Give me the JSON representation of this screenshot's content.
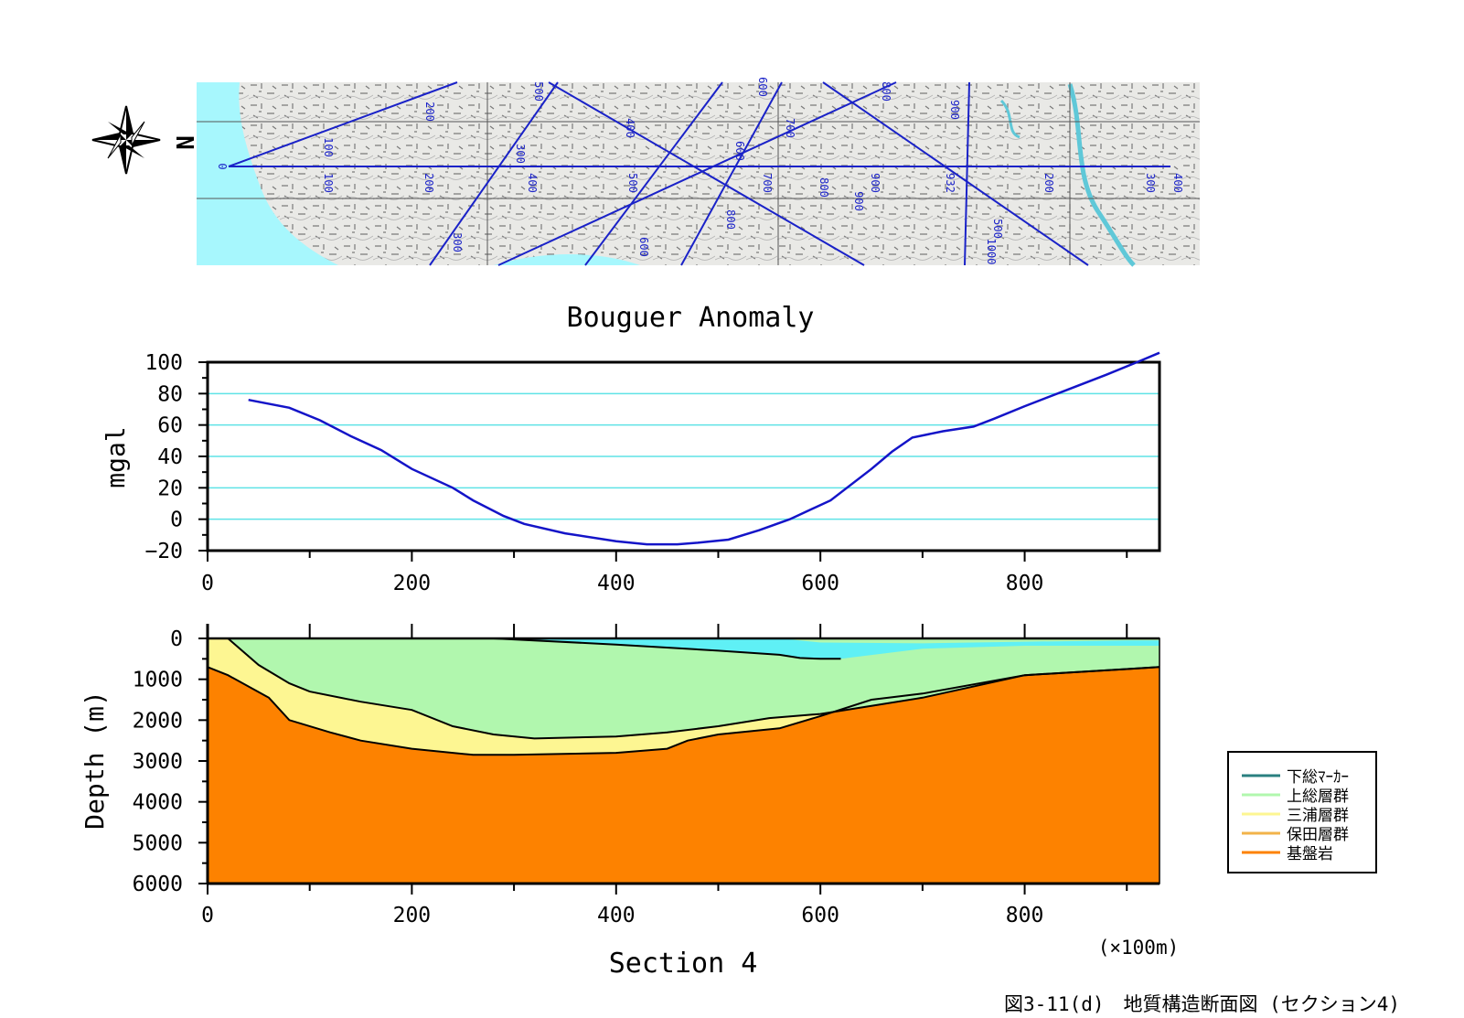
{
  "colors": {
    "route_line": "#1a22c8",
    "gravity_line": "#1414c8",
    "grid_line": "#5fe3e6",
    "axis": "#000000",
    "hodogaya": "#f2b34a",
    "miura": "#fdf692",
    "kazusa": "#b1f7ae",
    "shimosa": "#2a8080",
    "shimosa_fill": "#5ff0f5",
    "basement": "#fd8200",
    "sea": "#a7f7fd",
    "map_land": "#e9e9e6"
  },
  "map": {
    "compass_label": "N",
    "distance_labels": [
      "0",
      "100",
      "100",
      "200",
      "200",
      "300",
      "300",
      "400",
      "400",
      "500",
      "500",
      "600",
      "600",
      "700",
      "700",
      "800",
      "800",
      "900",
      "900",
      "932",
      "1000",
      "200",
      "300",
      "400",
      "500",
      "600",
      "800",
      "900"
    ]
  },
  "chart_data": [
    {
      "type": "line",
      "title": "Bouguer Anomaly",
      "xlabel": "",
      "ylabel": "mgal",
      "xlim": [
        0,
        932
      ],
      "ylim": [
        -20,
        100
      ],
      "xticks": [
        0,
        200,
        400,
        600,
        800
      ],
      "yticks": [
        100,
        80,
        60,
        40,
        20,
        0,
        -20
      ],
      "grid": "horizontal",
      "series": [
        {
          "x": [
            40,
            80,
            110,
            140,
            170,
            200,
            240,
            260,
            290,
            310,
            350,
            400,
            430,
            460,
            480,
            510,
            540,
            570,
            610,
            650,
            670,
            690,
            720,
            750,
            770,
            800,
            840,
            880,
            910,
            932
          ],
          "y": [
            76,
            71,
            63,
            53,
            44,
            32,
            20,
            12,
            2,
            -3,
            -9,
            -14,
            -16,
            -16,
            -15,
            -13,
            -7,
            0,
            12,
            32,
            43,
            52,
            56,
            59,
            64,
            72,
            82,
            92,
            100,
            106
          ]
        }
      ]
    },
    {
      "type": "area",
      "title": "",
      "xlabel": "Section 4",
      "ylabel": "Depth (m)",
      "x_unit_note": "(×100m)",
      "xlim": [
        0,
        932
      ],
      "ylim": [
        6000,
        0
      ],
      "xticks": [
        0,
        200,
        400,
        600,
        800
      ],
      "yticks": [
        0,
        1000,
        2000,
        3000,
        4000,
        5000,
        6000
      ],
      "legend": {
        "position": "right",
        "entries": [
          "下総ﾏｰｶｰ",
          "上総層群",
          "三浦層群",
          "保田層群",
          "基盤岩"
        ]
      },
      "layers": [
        {
          "name": "下総ﾏｰｶｰ",
          "top": {
            "x": [
              280,
              500,
              560,
              580,
              600,
              700,
              800,
              900,
              932
            ],
            "y": [
              0,
              0,
              0,
              50,
              100,
              120,
              80,
              50,
              50
            ]
          },
          "bottom": {
            "x": [
              280,
              400,
              500,
              560,
              580,
              600,
              620,
              700,
              800,
              900,
              932
            ],
            "y": [
              0,
              150,
              300,
              400,
              480,
              500,
              500,
              250,
              180,
              180,
              180
            ]
          }
        },
        {
          "name": "上総層群 base",
          "x": [
            20,
            50,
            80,
            100,
            150,
            200,
            240,
            280,
            320,
            400,
            450,
            500,
            550,
            600,
            650,
            700,
            800,
            900,
            932
          ],
          "y": [
            0,
            650,
            1100,
            1300,
            1550,
            1750,
            2150,
            2350,
            2450,
            2400,
            2300,
            2150,
            1950,
            1850,
            1650,
            1450,
            900,
            750,
            700
          ]
        },
        {
          "name": "三浦層群 base",
          "x": [
            0,
            20,
            60,
            80,
            120,
            150,
            200,
            260,
            300,
            400,
            450,
            470,
            500,
            560,
            600,
            650,
            700,
            800,
            900,
            932
          ],
          "y": [
            700,
            900,
            1450,
            2000,
            2300,
            2500,
            2700,
            2850,
            2850,
            2800,
            2700,
            2500,
            2350,
            2200,
            1900,
            1500,
            1350,
            900,
            750,
            700
          ]
        }
      ]
    }
  ],
  "caption": "図3-11(d)　地質構造断面図 (セクション4)"
}
